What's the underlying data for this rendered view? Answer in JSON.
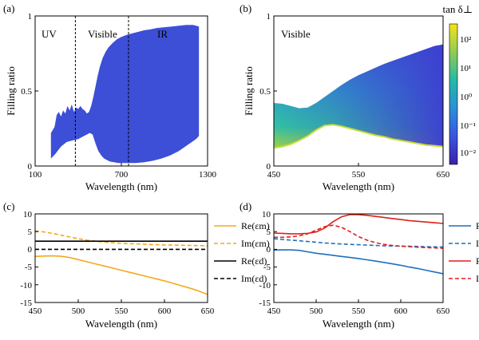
{
  "chart_data": [
    {
      "panel": "(a)",
      "type": "area",
      "title": "",
      "xlabel": "Wavelength (nm)",
      "ylabel": "Filling ratio",
      "xlim": [
        100,
        1300
      ],
      "ylim": [
        0,
        1
      ],
      "xticks": [
        "100",
        "700",
        "1300"
      ],
      "yticks": [
        "0",
        "0.5",
        "1"
      ],
      "region_lines": [
        380,
        750
      ],
      "regions": [
        "UV",
        "Visible",
        "IR"
      ],
      "fill_color": "#3d4fd6",
      "upper": {
        "x": [
          210,
          235,
          250,
          265,
          280,
          295,
          310,
          325,
          340,
          355,
          370,
          385,
          400,
          415,
          430,
          445,
          460,
          475,
          490,
          505,
          520,
          535,
          550,
          570,
          590,
          610,
          640,
          670,
          700,
          740,
          780,
          820,
          860,
          900,
          950,
          1000,
          1050,
          1100,
          1150,
          1200,
          1240
        ],
        "y": [
          0.22,
          0.26,
          0.34,
          0.36,
          0.33,
          0.37,
          0.35,
          0.4,
          0.37,
          0.41,
          0.36,
          0.39,
          0.38,
          0.4,
          0.38,
          0.37,
          0.35,
          0.36,
          0.4,
          0.46,
          0.53,
          0.6,
          0.66,
          0.72,
          0.76,
          0.79,
          0.82,
          0.845,
          0.86,
          0.875,
          0.885,
          0.895,
          0.905,
          0.91,
          0.92,
          0.925,
          0.93,
          0.935,
          0.94,
          0.94,
          0.93
        ]
      },
      "lower": {
        "x": [
          210,
          240,
          280,
          320,
          360,
          400,
          440,
          480,
          500,
          520,
          540,
          560,
          580,
          620,
          680,
          740,
          800,
          860,
          920,
          980,
          1040,
          1100,
          1160,
          1220,
          1240
        ],
        "y": [
          0.05,
          0.08,
          0.13,
          0.16,
          0.17,
          0.18,
          0.2,
          0.22,
          0.21,
          0.15,
          0.1,
          0.07,
          0.05,
          0.03,
          0.02,
          0.02,
          0.02,
          0.025,
          0.035,
          0.05,
          0.07,
          0.1,
          0.14,
          0.18,
          0.2
        ]
      }
    },
    {
      "panel": "(b)",
      "type": "area",
      "title": "",
      "xlabel": "Wavelength (nm)",
      "ylabel": "Filling ratio",
      "xlim": [
        450,
        650
      ],
      "ylim": [
        0,
        1
      ],
      "xticks": [
        "450",
        "550",
        "650"
      ],
      "yticks": [
        "0",
        "0.5",
        "1"
      ],
      "regions": [
        "Visible"
      ],
      "colorbar_label": "tan δ⊥",
      "colorbar_ticks": [
        "10²",
        "10¹",
        "10⁰",
        "10⁻¹",
        "10⁻²"
      ],
      "upper": {
        "x": [
          450,
          460,
          470,
          480,
          490,
          500,
          510,
          520,
          530,
          540,
          550,
          560,
          570,
          580,
          590,
          600,
          610,
          620,
          630,
          640,
          650
        ],
        "y": [
          0.42,
          0.415,
          0.4,
          0.385,
          0.39,
          0.42,
          0.46,
          0.5,
          0.54,
          0.575,
          0.605,
          0.63,
          0.655,
          0.68,
          0.7,
          0.72,
          0.74,
          0.76,
          0.78,
          0.8,
          0.81
        ]
      },
      "lower": {
        "x": [
          450,
          460,
          470,
          480,
          490,
          500,
          510,
          520,
          530,
          540,
          550,
          560,
          570,
          580,
          590,
          600,
          610,
          620,
          630,
          640,
          650
        ],
        "y": [
          0.12,
          0.13,
          0.145,
          0.17,
          0.2,
          0.24,
          0.27,
          0.275,
          0.265,
          0.25,
          0.235,
          0.22,
          0.205,
          0.195,
          0.18,
          0.17,
          0.16,
          0.15,
          0.14,
          0.135,
          0.13
        ]
      }
    },
    {
      "panel": "(c)",
      "type": "line",
      "title": "",
      "xlabel": "Wavelength (nm)",
      "ylabel": "",
      "xlim": [
        450,
        650
      ],
      "ylim": [
        -15,
        10
      ],
      "xticks": [
        "450",
        "500",
        "550",
        "600",
        "650"
      ],
      "yticks": [
        "10",
        "5",
        "0",
        "-5",
        "-10",
        "-15"
      ],
      "x": [
        450,
        460,
        470,
        480,
        490,
        500,
        510,
        520,
        530,
        540,
        550,
        560,
        570,
        580,
        590,
        600,
        610,
        620,
        630,
        640,
        650
      ],
      "series": [
        {
          "name": "Re(εm)",
          "color": "#f5a81b",
          "dash": false,
          "values": [
            -2.0,
            -1.9,
            -1.85,
            -1.95,
            -2.3,
            -2.9,
            -3.5,
            -4.1,
            -4.7,
            -5.3,
            -5.9,
            -6.5,
            -7.1,
            -7.7,
            -8.3,
            -8.9,
            -9.6,
            -10.3,
            -11.0,
            -11.8,
            -12.7
          ]
        },
        {
          "name": "Im(εm)",
          "color": "#f5a81b",
          "dash": true,
          "values": [
            5.2,
            4.9,
            4.5,
            4.0,
            3.5,
            3.0,
            2.6,
            2.3,
            2.05,
            1.85,
            1.7,
            1.6,
            1.5,
            1.4,
            1.32,
            1.25,
            1.2,
            1.15,
            1.1,
            1.05,
            1.0
          ]
        },
        {
          "name": "Re(εd)",
          "color": "#000000",
          "dash": false,
          "values": [
            2.3,
            2.3,
            2.3,
            2.3,
            2.3,
            2.3,
            2.3,
            2.3,
            2.3,
            2.3,
            2.3,
            2.3,
            2.3,
            2.3,
            2.3,
            2.3,
            2.3,
            2.3,
            2.3,
            2.3,
            2.3
          ]
        },
        {
          "name": "Im(εd)",
          "color": "#000000",
          "dash": true,
          "values": [
            0.0,
            0.0,
            0.0,
            0.0,
            0.0,
            0.0,
            0.0,
            0.0,
            0.0,
            0.0,
            0.0,
            0.0,
            0.0,
            0.0,
            0.0,
            0.0,
            0.0,
            0.0,
            0.0,
            0.0,
            0.0
          ]
        }
      ]
    },
    {
      "panel": "(d)",
      "type": "line",
      "title": "",
      "xlabel": "Wavelength (nm)",
      "ylabel": "",
      "xlim": [
        450,
        650
      ],
      "ylim": [
        -15,
        10
      ],
      "xticks": [
        "450",
        "500",
        "550",
        "600",
        "650"
      ],
      "yticks": [
        "10",
        "5",
        "0",
        "-5",
        "-10",
        "-15"
      ],
      "x": [
        450,
        460,
        470,
        480,
        490,
        500,
        510,
        520,
        530,
        540,
        550,
        560,
        570,
        580,
        590,
        600,
        610,
        620,
        630,
        640,
        650
      ],
      "series": [
        {
          "name": "Re(ε∥)",
          "color": "#1f6fbf",
          "dash": false,
          "values": [
            -0.2,
            -0.15,
            -0.15,
            -0.3,
            -0.7,
            -1.1,
            -1.4,
            -1.7,
            -2.0,
            -2.3,
            -2.6,
            -2.95,
            -3.3,
            -3.7,
            -4.1,
            -4.5,
            -5.0,
            -5.4,
            -5.9,
            -6.4,
            -6.9
          ]
        },
        {
          "name": "Im(ε∥)",
          "color": "#1f6fbf",
          "dash": true,
          "values": [
            3.0,
            2.8,
            2.6,
            2.4,
            2.2,
            2.0,
            1.8,
            1.65,
            1.5,
            1.4,
            1.3,
            1.2,
            1.1,
            1.0,
            0.95,
            0.9,
            0.85,
            0.8,
            0.75,
            0.7,
            0.65
          ]
        },
        {
          "name": "Re(ε⊥)",
          "color": "#e0201b",
          "dash": false,
          "values": [
            4.6,
            4.5,
            4.4,
            4.4,
            4.5,
            4.9,
            6.0,
            7.8,
            9.2,
            9.8,
            9.8,
            9.6,
            9.3,
            9.0,
            8.7,
            8.4,
            8.1,
            7.9,
            7.7,
            7.5,
            7.3
          ]
        },
        {
          "name": "Im(ε⊥)",
          "color": "#e0201b",
          "dash": true,
          "values": [
            3.4,
            3.4,
            3.5,
            3.8,
            4.4,
            5.4,
            6.4,
            6.8,
            6.2,
            5.0,
            3.6,
            2.6,
            1.9,
            1.4,
            1.1,
            0.9,
            0.75,
            0.6,
            0.5,
            0.4,
            0.3
          ]
        }
      ]
    }
  ]
}
